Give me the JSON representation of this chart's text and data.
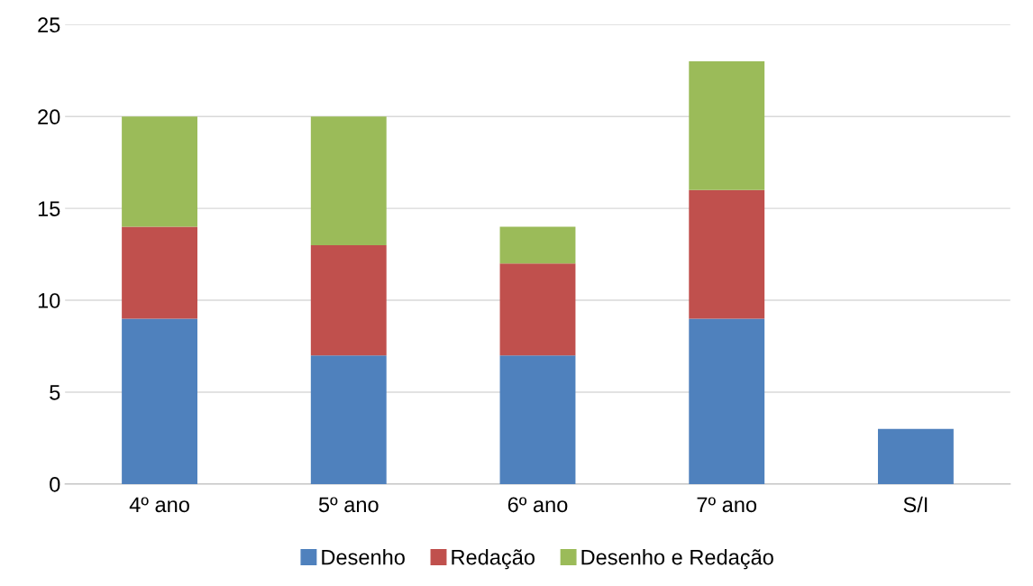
{
  "chart_data": {
    "type": "bar",
    "stacked": true,
    "categories": [
      "4º ano",
      "5º ano",
      "6º ano",
      "7º ano",
      "S/I"
    ],
    "series": [
      {
        "name": "Desenho",
        "color": "#4f81bd",
        "values": [
          9,
          7,
          7,
          9,
          3
        ]
      },
      {
        "name": "Redação",
        "color": "#c0504d",
        "values": [
          5,
          6,
          5,
          7,
          null
        ]
      },
      {
        "name": "Desenho e Redação",
        "color": "#9bbb59",
        "values": [
          6,
          7,
          2,
          7,
          null
        ]
      }
    ],
    "ylim": [
      0,
      25
    ],
    "yticks": [
      0,
      5,
      10,
      15,
      20,
      25
    ],
    "grid": "y",
    "legend": "bottom"
  }
}
